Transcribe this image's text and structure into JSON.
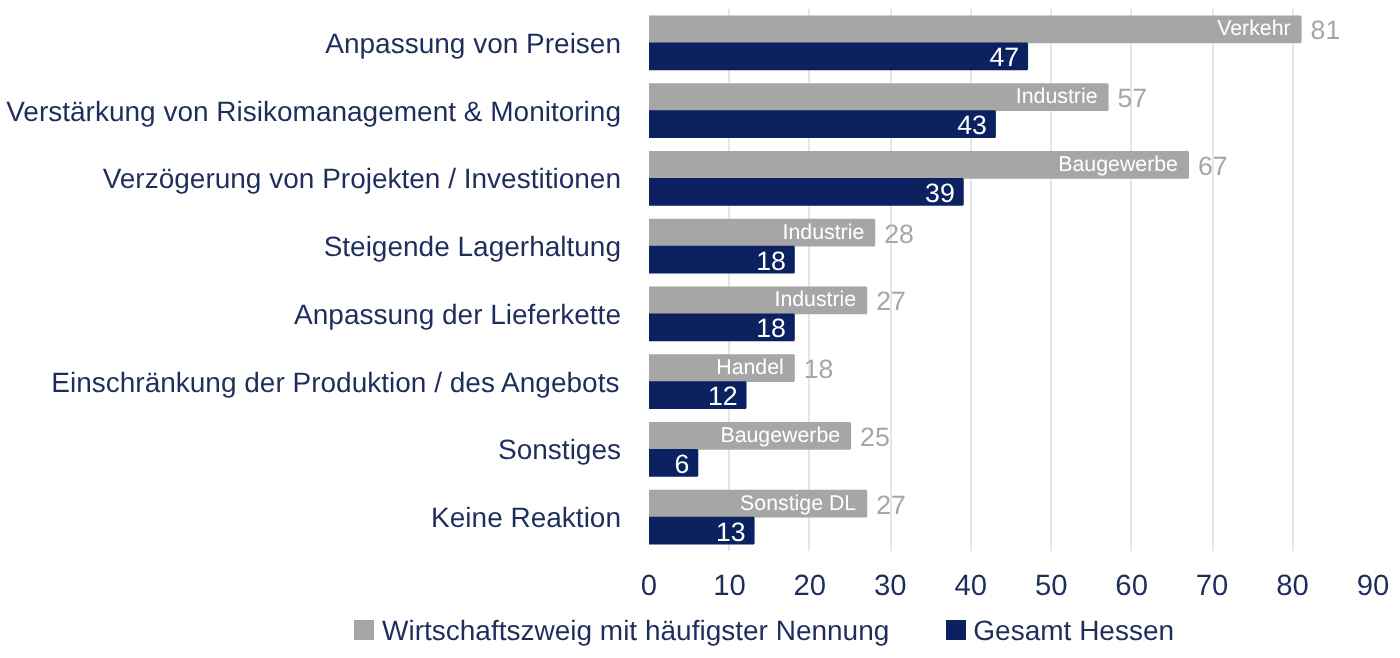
{
  "chart_data": {
    "type": "bar",
    "orientation": "horizontal",
    "categories": [
      "Anpassung von Preisen",
      "Verstärkung von Risikomanagement & Monitoring",
      "Verzögerung von Projekten / Investitionen",
      "Steigende Lagerhaltung",
      "Anpassung der Lieferkette",
      "Einschränkung der Produktion / des Angebots",
      "Sonstiges",
      "Keine Reaktion"
    ],
    "series": [
      {
        "name": "Wirtschaftszweig mit häufigster Nennung",
        "color": "#a6a6a6",
        "values": [
          81,
          57,
          67,
          28,
          27,
          18,
          25,
          27
        ]
      },
      {
        "name": "Gesamt Hessen",
        "color": "#0b2160",
        "values": [
          47,
          43,
          39,
          18,
          18,
          12,
          6,
          13
        ]
      }
    ],
    "xlim": [
      0,
      90
    ],
    "xticks": [
      0,
      10,
      20,
      30,
      40,
      50,
      60,
      70,
      80,
      90
    ],
    "grid": "x",
    "legend": "bottom",
    "data_labels": true,
    "annotations": [
      {
        "text": "Verkehr",
        "x": 81,
        "y": "Anpassung von Preisen"
      },
      {
        "text": "Industrie",
        "x": 57,
        "y": "Verstärkung von Risikomanagement & Monitoring"
      },
      {
        "text": "Baugewerbe",
        "x": 67,
        "y": "Verzögerung von Projekten / Investitionen"
      },
      {
        "text": "Industrie",
        "x": 28,
        "y": "Steigende Lagerhaltung"
      },
      {
        "text": "Industrie",
        "x": 27,
        "y": "Anpassung der Lieferkette"
      },
      {
        "text": "Handel",
        "x": 18,
        "y": "Einschränkung der Produktion / des Angebots"
      },
      {
        "text": "Baugewerbe",
        "x": 25,
        "y": "Sonstiges"
      },
      {
        "text": "Sonstige DL",
        "x": 27,
        "y": "Keine Reaktion"
      }
    ]
  }
}
